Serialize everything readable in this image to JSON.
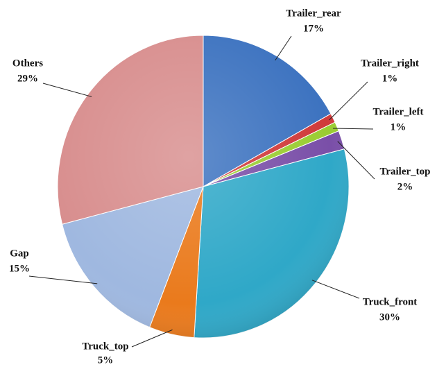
{
  "chart_data": {
    "type": "pie",
    "categories": [
      "Trailer_rear",
      "Trailer_right",
      "Trailer_left",
      "Trailer_top",
      "Truck_front",
      "Truck_top",
      "Gap",
      "Others"
    ],
    "values": [
      17,
      1,
      1,
      2,
      30,
      5,
      15,
      29
    ],
    "value_labels": [
      "17%",
      "1%",
      "1%",
      "2%",
      "30%",
      "5%",
      "15%",
      "29%"
    ],
    "colors": [
      "#3d73c0",
      "#d03a3a",
      "#9acd32",
      "#7a4fa8",
      "#2fa8c8",
      "#ea7a1c",
      "#9fb8e0",
      "#d88e8e"
    ]
  }
}
